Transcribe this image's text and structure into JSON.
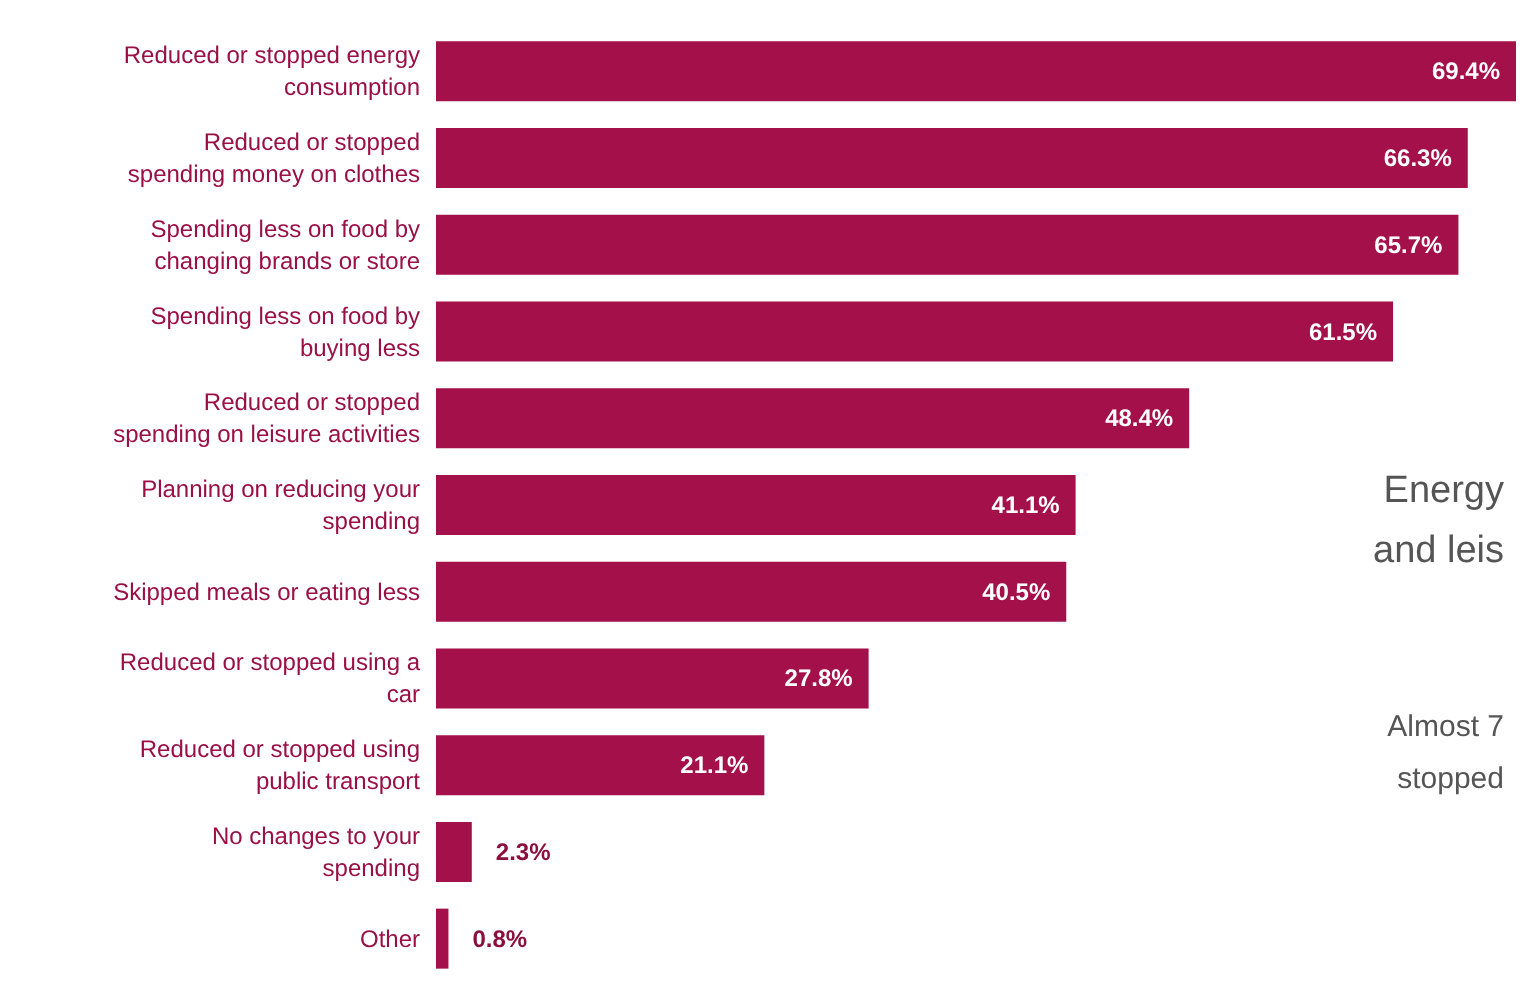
{
  "chart_data": {
    "type": "bar",
    "orientation": "horizontal",
    "categories": [
      "Reduced or stopped energy\nconsumption",
      "Reduced or stopped\nspending money on clothes",
      "Spending less on food by\nchanging brands or store",
      "Spending less on food by\nbuying less",
      "Reduced or stopped\nspending on leisure activities",
      "Planning on reducing your\nspending",
      "Skipped meals or eating less",
      "Reduced or stopped using a\ncar",
      "Reduced or stopped using\npublic transport",
      "No changes to your\nspending",
      "Other"
    ],
    "values": [
      69.4,
      66.3,
      65.7,
      61.5,
      48.4,
      41.1,
      40.5,
      27.8,
      21.1,
      2.3,
      0.8
    ],
    "value_labels": [
      "69.4%",
      "66.3%",
      "65.7%",
      "61.5%",
      "48.4%",
      "41.1%",
      "40.5%",
      "27.8%",
      "21.1%",
      "2.3%",
      "0.8%"
    ],
    "color": "#a3104a",
    "annotations": [
      "Energy",
      "and leis",
      "Almost 7",
      "stopped"
    ]
  }
}
